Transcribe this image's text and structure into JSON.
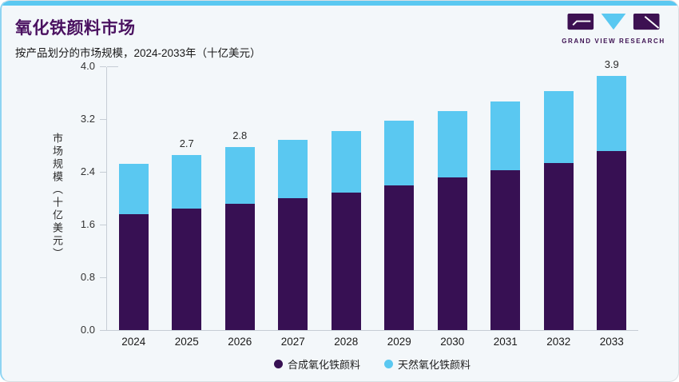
{
  "card": {
    "title": "氧化铁颜料市场",
    "subtitle": "按产品划分的市场规模，2024-2033年（十亿美元）",
    "accent_color": "#5ac8f1",
    "background_color": "#f3f7fa",
    "title_color": "#4a1160"
  },
  "logo": {
    "name": "grand-view-research-logo",
    "text": "GRAND VIEW RESEARCH",
    "purple": "#3d1152",
    "cyan": "#5ac8f1"
  },
  "chart_data": {
    "type": "bar",
    "stacked": true,
    "title": "氧化铁颜料市场",
    "subtitle": "按产品划分的市场规模，2024-2033年（十亿美元）",
    "categories": [
      "2024",
      "2025",
      "2026",
      "2027",
      "2028",
      "2029",
      "2030",
      "2031",
      "2032",
      "2033"
    ],
    "series": [
      {
        "name": "合成氧化铁颜料",
        "color": "#371053",
        "values": [
          1.76,
          1.84,
          1.92,
          2.0,
          2.09,
          2.2,
          2.31,
          2.42,
          2.53,
          2.71
        ]
      },
      {
        "name": "天然氧化铁颜料",
        "color": "#5ac8f1",
        "values": [
          0.76,
          0.81,
          0.85,
          0.89,
          0.93,
          0.97,
          1.01,
          1.05,
          1.1,
          1.15
        ]
      }
    ],
    "totals": [
      2.52,
      2.65,
      2.77,
      2.89,
      3.02,
      3.17,
      3.32,
      3.47,
      3.63,
      3.86
    ],
    "bar_labels": [
      "",
      "2.7",
      "2.8",
      "",
      "",
      "",
      "",
      "",
      "",
      "3.9"
    ],
    "xlabel": "",
    "ylabel": "市场规模（十亿美元）",
    "ylim": [
      0,
      4.0
    ],
    "yticks": [
      "0.0",
      "0.8",
      "1.6",
      "2.4",
      "3.2",
      "4.0"
    ],
    "grid": false,
    "legend_position": "bottom",
    "axis_color": "#c6cdd5"
  }
}
